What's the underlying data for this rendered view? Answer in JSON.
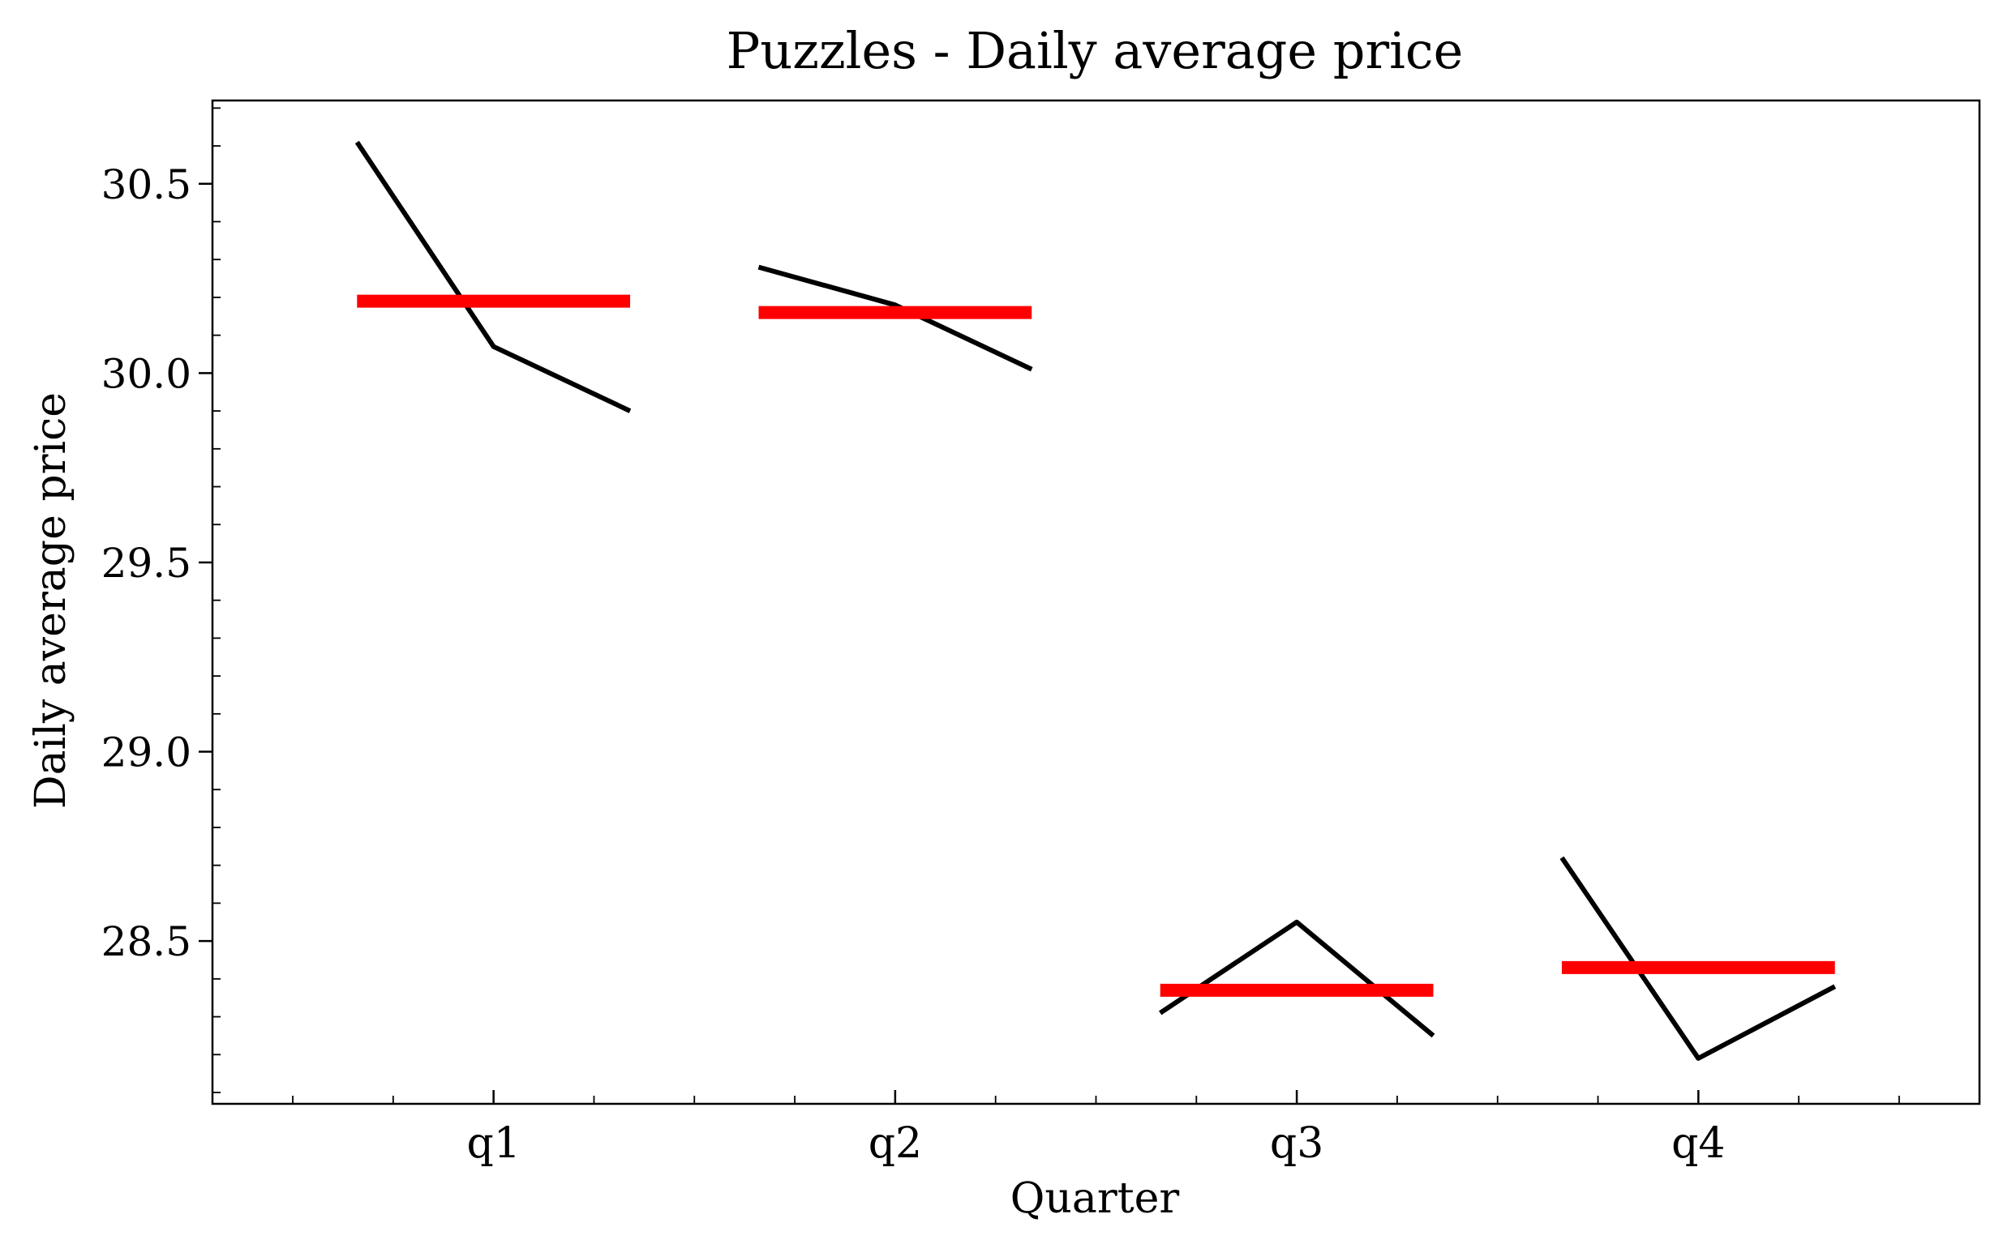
{
  "chart_data": {
    "type": "line",
    "title": "Puzzles - Daily average price",
    "xlabel": "Quarter",
    "ylabel": "Daily average price",
    "categories": [
      "q1",
      "q2",
      "q3",
      "q4"
    ],
    "ylim": [
      28.07,
      30.72
    ],
    "yticks": [
      28.5,
      29.0,
      29.5,
      30.0,
      30.5
    ],
    "ytick_labels": [
      "28.5",
      "29.0",
      "29.5",
      "30.0",
      "30.5"
    ],
    "grid": false,
    "legend": "none",
    "series": [
      {
        "kind": "within-quarter line",
        "color": "#000000",
        "groups": [
          {
            "category": "q1",
            "values": [
              30.61,
              30.07,
              29.9
            ]
          },
          {
            "category": "q2",
            "values": [
              30.28,
              30.18,
              30.01
            ]
          },
          {
            "category": "q3",
            "values": [
              28.31,
              28.55,
              28.25
            ]
          },
          {
            "category": "q4",
            "values": [
              28.72,
              28.19,
              28.38
            ]
          }
        ]
      },
      {
        "kind": "quarter mean",
        "color": "#ff0000",
        "values": [
          30.19,
          30.16,
          28.37,
          28.43
        ]
      }
    ]
  }
}
